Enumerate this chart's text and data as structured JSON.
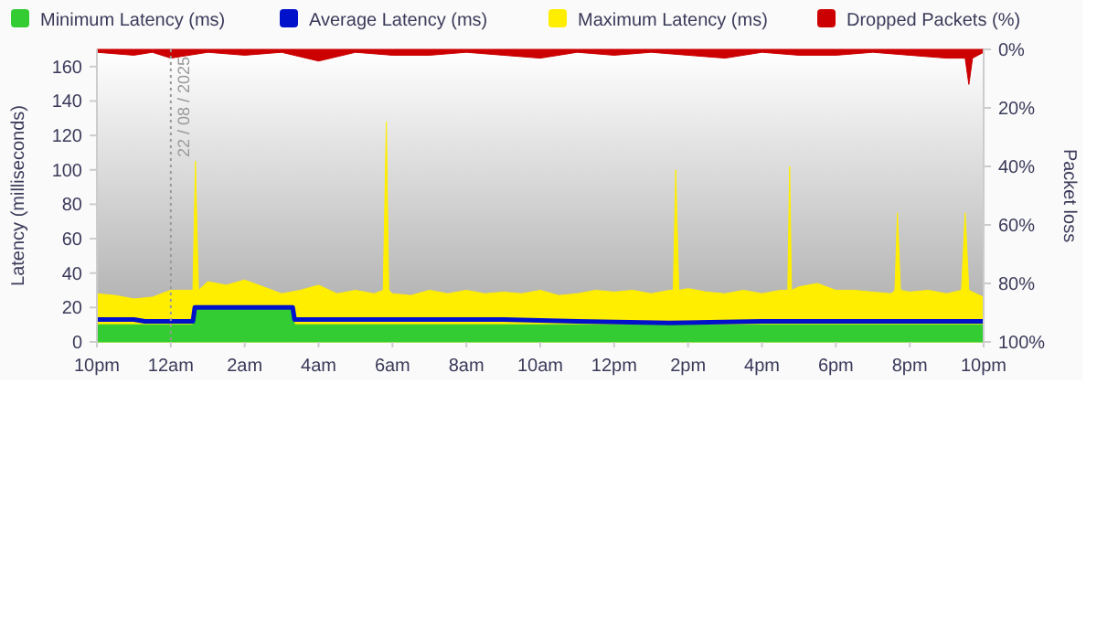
{
  "chart_data": {
    "type": "area",
    "ylabel": "Latency (milliseconds)",
    "y2label": "Packet loss",
    "xlim": [
      "2025-08-21T22:00",
      "2025-08-22T22:00"
    ],
    "xticks": [
      {
        "value": "2025-08-21T22:00",
        "label": "10pm"
      },
      {
        "value": "2025-08-22T00:00",
        "label": "12am"
      },
      {
        "value": "2025-08-22T02:00",
        "label": "2am"
      },
      {
        "value": "2025-08-22T04:00",
        "label": "4am"
      },
      {
        "value": "2025-08-22T06:00",
        "label": "6am"
      },
      {
        "value": "2025-08-22T08:00",
        "label": "8am"
      },
      {
        "value": "2025-08-22T10:00",
        "label": "10am"
      },
      {
        "value": "2025-08-22T12:00",
        "label": "12pm"
      },
      {
        "value": "2025-08-22T14:00",
        "label": "2pm"
      },
      {
        "value": "2025-08-22T16:00",
        "label": "4pm"
      },
      {
        "value": "2025-08-22T18:00",
        "label": "6pm"
      },
      {
        "value": "2025-08-22T20:00",
        "label": "8pm"
      },
      {
        "value": "2025-08-22T22:00",
        "label": "10pm"
      }
    ],
    "ylim": [
      0,
      170
    ],
    "yticks": [
      0,
      20,
      40,
      60,
      80,
      100,
      120,
      140,
      160
    ],
    "y2lim": [
      100,
      0
    ],
    "y2ticks": [
      {
        "value": 0,
        "label": "0%"
      },
      {
        "value": 20,
        "label": "20%"
      },
      {
        "value": 40,
        "label": "40%"
      },
      {
        "value": 60,
        "label": "60%"
      },
      {
        "value": 80,
        "label": "80%"
      },
      {
        "value": 100,
        "label": "100%"
      }
    ],
    "legend": "top",
    "ref_lines": [
      {
        "axis": "x",
        "value": "2025-08-22T00:00",
        "label": "22 / 08 / 2025",
        "color": "#999999",
        "line_style": "dotted"
      }
    ],
    "series": [
      {
        "name": "Maximum Latency (ms)",
        "color": "#ffee00",
        "x": [
          "2025-08-21T22:00",
          "2025-08-21T22:30",
          "2025-08-21T23:00",
          "2025-08-21T23:30",
          "2025-08-22T00:00",
          "2025-08-22T00:30",
          "2025-08-22T00:36",
          "2025-08-22T00:40",
          "2025-08-22T00:45",
          "2025-08-22T01:00",
          "2025-08-22T01:30",
          "2025-08-22T02:00",
          "2025-08-22T02:30",
          "2025-08-22T03:00",
          "2025-08-22T03:30",
          "2025-08-22T04:00",
          "2025-08-22T04:30",
          "2025-08-22T05:00",
          "2025-08-22T05:30",
          "2025-08-22T05:45",
          "2025-08-22T05:50",
          "2025-08-22T05:54",
          "2025-08-22T06:00",
          "2025-08-22T06:30",
          "2025-08-22T07:00",
          "2025-08-22T07:30",
          "2025-08-22T08:00",
          "2025-08-22T08:30",
          "2025-08-22T09:00",
          "2025-08-22T09:30",
          "2025-08-22T10:00",
          "2025-08-22T10:30",
          "2025-08-22T11:00",
          "2025-08-22T11:30",
          "2025-08-22T12:00",
          "2025-08-22T12:30",
          "2025-08-22T13:00",
          "2025-08-22T13:30",
          "2025-08-22T13:36",
          "2025-08-22T13:40",
          "2025-08-22T13:45",
          "2025-08-22T14:00",
          "2025-08-22T14:30",
          "2025-08-22T15:00",
          "2025-08-22T15:30",
          "2025-08-22T16:00",
          "2025-08-22T16:30",
          "2025-08-22T16:42",
          "2025-08-22T16:45",
          "2025-08-22T16:48",
          "2025-08-22T17:00",
          "2025-08-22T17:30",
          "2025-08-22T18:00",
          "2025-08-22T18:30",
          "2025-08-22T19:00",
          "2025-08-22T19:30",
          "2025-08-22T19:36",
          "2025-08-22T19:40",
          "2025-08-22T19:45",
          "2025-08-22T20:00",
          "2025-08-22T20:30",
          "2025-08-22T21:00",
          "2025-08-22T21:24",
          "2025-08-22T21:30",
          "2025-08-22T21:36",
          "2025-08-22T22:00"
        ],
        "values": [
          28,
          27,
          25,
          26,
          30,
          30,
          30,
          105,
          30,
          35,
          33,
          36,
          32,
          28,
          30,
          33,
          28,
          30,
          28,
          30,
          128,
          30,
          28,
          27,
          30,
          28,
          30,
          28,
          29,
          28,
          30,
          27,
          28,
          30,
          29,
          30,
          28,
          30,
          30,
          100,
          30,
          31,
          29,
          28,
          30,
          28,
          30,
          30,
          102,
          30,
          32,
          34,
          30,
          30,
          29,
          28,
          30,
          75,
          30,
          29,
          30,
          28,
          30,
          75,
          30,
          26
        ]
      },
      {
        "name": "Minimum Latency (ms)",
        "color": "#33cc33",
        "x": [
          "2025-08-21T22:00",
          "2025-08-22T00:36",
          "2025-08-22T00:39",
          "2025-08-22T03:18",
          "2025-08-22T03:21",
          "2025-08-22T22:00"
        ],
        "values": [
          10,
          10,
          20,
          20,
          10,
          10
        ]
      },
      {
        "name": "Average Latency (ms)",
        "type": "line",
        "color": "#0011cc",
        "x": [
          "2025-08-21T22:00",
          "2025-08-21T23:00",
          "2025-08-21T23:18",
          "2025-08-22T00:36",
          "2025-08-22T00:39",
          "2025-08-22T03:18",
          "2025-08-22T03:21",
          "2025-08-22T06:00",
          "2025-08-22T09:00",
          "2025-08-22T11:00",
          "2025-08-22T13:30",
          "2025-08-22T16:00",
          "2025-08-22T19:00",
          "2025-08-22T22:00"
        ],
        "values": [
          13,
          13,
          12,
          12,
          20,
          20,
          13,
          13,
          13,
          12,
          11,
          12,
          12,
          12
        ]
      },
      {
        "name": "Dropped Packets (%)",
        "axis": "y2",
        "color": "#cc0000",
        "x": [
          "2025-08-21T22:00",
          "2025-08-21T23:00",
          "2025-08-21T23:30",
          "2025-08-22T00:00",
          "2025-08-22T01:00",
          "2025-08-22T02:00",
          "2025-08-22T03:00",
          "2025-08-22T04:00",
          "2025-08-22T05:00",
          "2025-08-22T06:00",
          "2025-08-22T07:00",
          "2025-08-22T08:00",
          "2025-08-22T09:00",
          "2025-08-22T10:00",
          "2025-08-22T11:00",
          "2025-08-22T12:00",
          "2025-08-22T13:00",
          "2025-08-22T14:00",
          "2025-08-22T15:00",
          "2025-08-22T16:00",
          "2025-08-22T17:00",
          "2025-08-22T18:00",
          "2025-08-22T19:00",
          "2025-08-22T20:00",
          "2025-08-22T21:00",
          "2025-08-22T21:30",
          "2025-08-22T21:36",
          "2025-08-22T21:42",
          "2025-08-22T22:00"
        ],
        "values": [
          1,
          2,
          1,
          3,
          1,
          2,
          1,
          4,
          1,
          2,
          2,
          1,
          2,
          3,
          1,
          2,
          1,
          2,
          3,
          1,
          2,
          2,
          1,
          2,
          3,
          3,
          12,
          3,
          1
        ]
      }
    ]
  }
}
